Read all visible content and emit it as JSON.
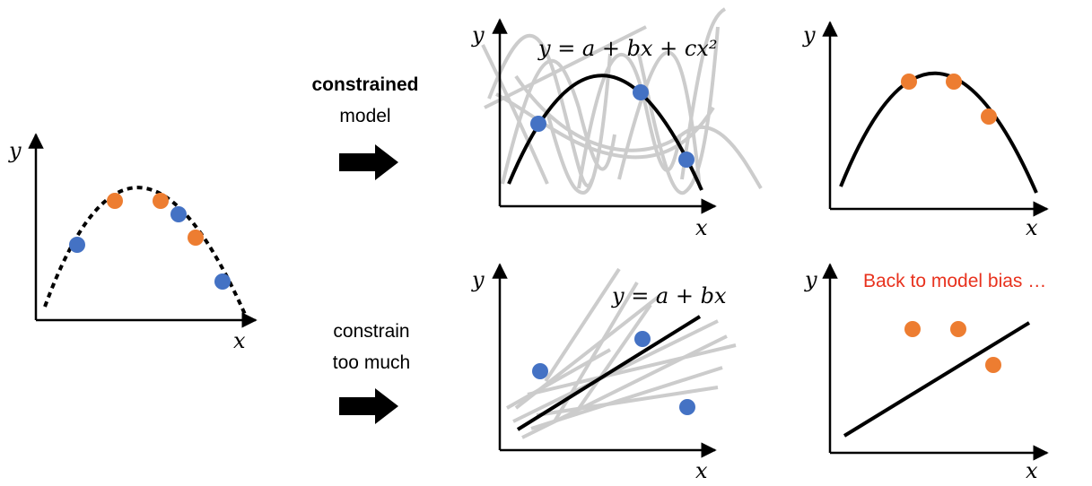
{
  "colors": {
    "blue": "#4472C4",
    "orange": "#ED7D31",
    "red": "#E8321E",
    "gray": "#C8C8C8",
    "black": "#000000"
  },
  "axis_labels": {
    "x": "x",
    "y": "y"
  },
  "captions": {
    "constrained_bold": "constrained",
    "constrained_rest": "model",
    "constrain": "constrain",
    "too_much": "too much",
    "bias": "Back to model bias …"
  },
  "formulas": {
    "quadratic": "y = a + bx + cx²",
    "linear": "y = a + bx"
  },
  "icons": {
    "arrow": "right-arrow-icon"
  }
}
